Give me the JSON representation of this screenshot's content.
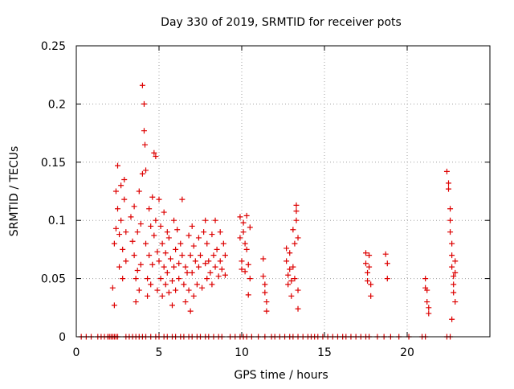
{
  "chart_data": {
    "type": "scatter",
    "title": "Day 330 of 2019, SRMTID for receiver pots",
    "xlabel": "GPS time / hours",
    "ylabel": "SRMTID / TECUs",
    "xlim": [
      0,
      25
    ],
    "ylim": [
      0,
      0.25
    ],
    "xticks": [
      0,
      5,
      10,
      15,
      20
    ],
    "xtick_labels": [
      "0",
      "5",
      "10",
      "15",
      "20"
    ],
    "yticks": [
      0,
      0.05,
      0.1,
      0.15,
      0.2,
      0.25
    ],
    "ytick_labels": [
      "0",
      "0.05",
      "0.1",
      "0.15",
      "0.2",
      "0.25"
    ],
    "grid": true,
    "legend": "none",
    "marker": "plus",
    "series_color": "#dd0000",
    "points": [
      [
        2.2,
        0.042
      ],
      [
        2.3,
        0.027
      ],
      [
        2.3,
        0.08
      ],
      [
        2.4,
        0.093
      ],
      [
        2.4,
        0.125
      ],
      [
        2.5,
        0.147
      ],
      [
        2.5,
        0.11
      ],
      [
        2.6,
        0.088
      ],
      [
        2.6,
        0.06
      ],
      [
        2.7,
        0.13
      ],
      [
        2.7,
        0.1
      ],
      [
        2.8,
        0.075
      ],
      [
        2.8,
        0.05
      ],
      [
        2.9,
        0.135
      ],
      [
        2.9,
        0.118
      ],
      [
        3.0,
        0.09
      ],
      [
        3.0,
        0.065
      ],
      [
        3.3,
        0.103
      ],
      [
        3.4,
        0.082
      ],
      [
        3.5,
        0.112
      ],
      [
        3.5,
        0.07
      ],
      [
        3.6,
        0.05
      ],
      [
        3.6,
        0.03
      ],
      [
        3.7,
        0.09
      ],
      [
        3.7,
        0.057
      ],
      [
        3.8,
        0.125
      ],
      [
        3.8,
        0.04
      ],
      [
        3.9,
        0.097
      ],
      [
        3.9,
        0.062
      ],
      [
        4.0,
        0.14
      ],
      [
        4.0,
        0.216
      ],
      [
        4.1,
        0.2
      ],
      [
        4.1,
        0.177
      ],
      [
        4.15,
        0.165
      ],
      [
        4.2,
        0.143
      ],
      [
        4.2,
        0.08
      ],
      [
        4.3,
        0.05
      ],
      [
        4.3,
        0.035
      ],
      [
        4.4,
        0.11
      ],
      [
        4.4,
        0.07
      ],
      [
        4.5,
        0.095
      ],
      [
        4.5,
        0.045
      ],
      [
        4.6,
        0.12
      ],
      [
        4.6,
        0.062
      ],
      [
        4.7,
        0.158
      ],
      [
        4.7,
        0.087
      ],
      [
        4.8,
        0.155
      ],
      [
        4.8,
        0.1
      ],
      [
        4.9,
        0.073
      ],
      [
        4.9,
        0.04
      ],
      [
        5.0,
        0.118
      ],
      [
        5.0,
        0.065
      ],
      [
        5.1,
        0.095
      ],
      [
        5.1,
        0.05
      ],
      [
        5.2,
        0.08
      ],
      [
        5.2,
        0.035
      ],
      [
        5.3,
        0.107
      ],
      [
        5.3,
        0.06
      ],
      [
        5.4,
        0.072
      ],
      [
        5.4,
        0.045
      ],
      [
        5.5,
        0.09
      ],
      [
        5.5,
        0.055
      ],
      [
        5.6,
        0.085
      ],
      [
        5.6,
        0.038
      ],
      [
        5.7,
        0.067
      ],
      [
        5.8,
        0.048
      ],
      [
        5.8,
        0.027
      ],
      [
        5.9,
        0.1
      ],
      [
        5.9,
        0.06
      ],
      [
        6.0,
        0.075
      ],
      [
        6.0,
        0.04
      ],
      [
        6.1,
        0.092
      ],
      [
        6.2,
        0.063
      ],
      [
        6.2,
        0.05
      ],
      [
        6.3,
        0.08
      ],
      [
        6.4,
        0.118
      ],
      [
        6.4,
        0.07
      ],
      [
        6.5,
        0.045
      ],
      [
        6.6,
        0.06
      ],
      [
        6.6,
        0.03
      ],
      [
        6.7,
        0.055
      ],
      [
        6.8,
        0.087
      ],
      [
        6.8,
        0.04
      ],
      [
        6.9,
        0.07
      ],
      [
        6.9,
        0.022
      ],
      [
        7.0,
        0.095
      ],
      [
        7.0,
        0.055
      ],
      [
        7.1,
        0.078
      ],
      [
        7.1,
        0.035
      ],
      [
        7.2,
        0.065
      ],
      [
        7.3,
        0.045
      ],
      [
        7.4,
        0.085
      ],
      [
        7.4,
        0.06
      ],
      [
        7.5,
        0.07
      ],
      [
        7.6,
        0.042
      ],
      [
        7.7,
        0.09
      ],
      [
        7.8,
        0.1
      ],
      [
        7.8,
        0.063
      ],
      [
        7.9,
        0.05
      ],
      [
        7.9,
        0.08
      ],
      [
        8.0,
        0.065
      ],
      [
        8.1,
        0.055
      ],
      [
        8.2,
        0.088
      ],
      [
        8.2,
        0.045
      ],
      [
        8.3,
        0.07
      ],
      [
        8.4,
        0.1
      ],
      [
        8.4,
        0.06
      ],
      [
        8.5,
        0.075
      ],
      [
        8.6,
        0.052
      ],
      [
        8.7,
        0.09
      ],
      [
        8.7,
        0.065
      ],
      [
        8.8,
        0.058
      ],
      [
        8.9,
        0.08
      ],
      [
        9.0,
        0.07
      ],
      [
        9.0,
        0.053
      ],
      [
        9.9,
        0.103
      ],
      [
        9.9,
        0.085
      ],
      [
        10.0,
        0.065
      ],
      [
        10.0,
        0.058
      ],
      [
        10.1,
        0.098
      ],
      [
        10.1,
        0.09
      ],
      [
        10.2,
        0.08
      ],
      [
        10.2,
        0.056
      ],
      [
        10.3,
        0.104
      ],
      [
        10.3,
        0.075
      ],
      [
        10.4,
        0.062
      ],
      [
        10.4,
        0.036
      ],
      [
        10.5,
        0.094
      ],
      [
        10.5,
        0.05
      ],
      [
        11.3,
        0.067
      ],
      [
        11.3,
        0.052
      ],
      [
        11.4,
        0.045
      ],
      [
        11.4,
        0.038
      ],
      [
        11.5,
        0.03
      ],
      [
        11.5,
        0.022
      ],
      [
        12.7,
        0.076
      ],
      [
        12.7,
        0.065
      ],
      [
        12.8,
        0.053
      ],
      [
        12.8,
        0.045
      ],
      [
        12.9,
        0.072
      ],
      [
        12.9,
        0.058
      ],
      [
        13.0,
        0.048
      ],
      [
        13.0,
        0.035
      ],
      [
        13.1,
        0.092
      ],
      [
        13.1,
        0.06
      ],
      [
        13.2,
        0.08
      ],
      [
        13.2,
        0.05
      ],
      [
        13.3,
        0.113
      ],
      [
        13.3,
        0.108
      ],
      [
        13.3,
        0.1
      ],
      [
        13.4,
        0.085
      ],
      [
        13.4,
        0.04
      ],
      [
        13.4,
        0.024
      ],
      [
        17.5,
        0.072
      ],
      [
        17.5,
        0.063
      ],
      [
        17.6,
        0.055
      ],
      [
        17.6,
        0.048
      ],
      [
        17.7,
        0.07
      ],
      [
        17.7,
        0.06
      ],
      [
        17.8,
        0.045
      ],
      [
        17.8,
        0.035
      ],
      [
        18.7,
        0.071
      ],
      [
        18.8,
        0.063
      ],
      [
        18.8,
        0.05
      ],
      [
        21.1,
        0.05
      ],
      [
        21.1,
        0.042
      ],
      [
        21.2,
        0.04
      ],
      [
        21.2,
        0.03
      ],
      [
        21.3,
        0.025
      ],
      [
        21.3,
        0.02
      ],
      [
        22.4,
        0.142
      ],
      [
        22.5,
        0.132
      ],
      [
        22.5,
        0.127
      ],
      [
        22.6,
        0.11
      ],
      [
        22.6,
        0.1
      ],
      [
        22.6,
        0.09
      ],
      [
        22.7,
        0.08
      ],
      [
        22.7,
        0.07
      ],
      [
        22.7,
        0.06
      ],
      [
        22.8,
        0.052
      ],
      [
        22.8,
        0.045
      ],
      [
        22.8,
        0.038
      ],
      [
        22.9,
        0.065
      ],
      [
        22.9,
        0.055
      ],
      [
        22.9,
        0.03
      ],
      [
        22.7,
        0.015
      ]
    ],
    "zero_points": [
      0.3,
      0.6,
      0.9,
      1.3,
      1.5,
      1.7,
      1.9,
      2.0,
      2.1,
      2.2,
      2.3,
      2.4,
      2.5,
      3.0,
      3.2,
      3.4,
      3.6,
      3.8,
      4.0,
      4.2,
      4.5,
      4.8,
      5.0,
      5.3,
      5.5,
      5.8,
      6.0,
      6.3,
      6.5,
      6.8,
      7.0,
      7.3,
      7.5,
      7.8,
      8.0,
      8.3,
      8.6,
      8.8,
      9.3,
      9.6,
      9.9,
      10.1,
      10.3,
      10.6,
      11.0,
      11.4,
      11.8,
      12.0,
      12.3,
      12.6,
      12.9,
      13.1,
      13.4,
      13.7,
      14.0,
      14.2,
      14.4,
      14.6,
      14.9,
      15.2,
      15.5,
      15.8,
      16.1,
      16.3,
      16.6,
      16.9,
      17.2,
      17.5,
      17.7,
      18.2,
      18.6,
      19.0,
      19.5,
      20.1,
      20.9,
      21.1,
      22.4,
      22.6
    ]
  }
}
